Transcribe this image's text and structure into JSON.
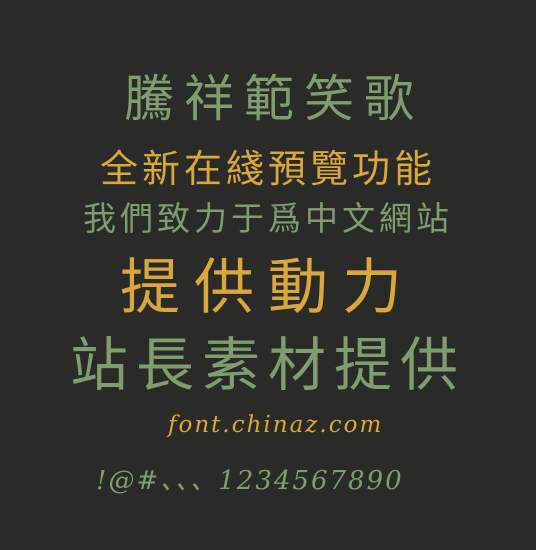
{
  "lines": {
    "title": "騰祥範笑歌",
    "line2": "全新在綫預覽功能",
    "line3": "我們致力于爲中文網站",
    "line4": "提供動力",
    "line5": "站長素材提供",
    "site": "font.chinaz.com",
    "symbols": "!@#、、、1234567890"
  },
  "colors": {
    "background": "#2a2a28",
    "green": "#7f9d6f",
    "gold": "#d9a73c"
  }
}
